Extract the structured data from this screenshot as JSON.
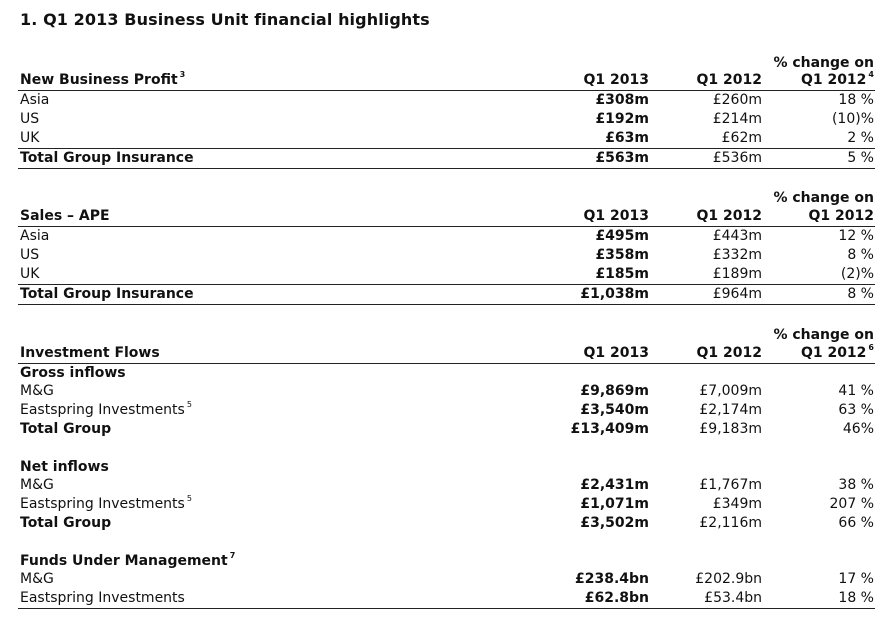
{
  "title": "1. Q1 2013 Business Unit financial highlights",
  "nbp": {
    "header": {
      "label": "New Business Profit",
      "sup": "3",
      "q13": "Q1 2013",
      "q12": "Q1 2012",
      "chg_line1": "% change on",
      "chg_line2": "Q1 2012",
      "chg_sup": "4"
    },
    "rows": [
      {
        "label": "Asia",
        "q13": "£308m",
        "q12": "£260m",
        "chg": "18 %"
      },
      {
        "label": "US",
        "q13": "£192m",
        "q12": "£214m",
        "chg": "(10)%"
      },
      {
        "label": "UK",
        "q13": "£63m",
        "q12": "£62m",
        "chg": "2 %"
      }
    ],
    "total": {
      "label": "Total Group Insurance",
      "q13": "£563m",
      "q12": "£536m",
      "chg": "5 %"
    }
  },
  "ape": {
    "header": {
      "label": "Sales – APE",
      "q13": "Q1 2013",
      "q12": "Q1 2012",
      "chg_line1": "% change on",
      "chg_line2": "Q1 2012"
    },
    "rows": [
      {
        "label": "Asia",
        "q13": "£495m",
        "q12": "£443m",
        "chg": "12 %"
      },
      {
        "label": "US",
        "q13": "£358m",
        "q12": "£332m",
        "chg": "8 %"
      },
      {
        "label": "UK",
        "q13": "£185m",
        "q12": "£189m",
        "chg": "(2)%"
      }
    ],
    "total": {
      "label": "Total Group Insurance",
      "q13": "£1,038m",
      "q12": "£964m",
      "chg": "8 %"
    }
  },
  "flows": {
    "header": {
      "label": "Investment Flows",
      "q13": "Q1 2013",
      "q12": "Q1 2012",
      "chg_line1": "% change on",
      "chg_line2": "Q1 2012",
      "chg_sup": "6"
    },
    "gross": {
      "label": "Gross inflows",
      "rows": [
        {
          "label": "M&G",
          "q13": "£9,869m",
          "q12": "£7,009m",
          "chg": "41 %"
        },
        {
          "label": "Eastspring Investments",
          "sup": "5",
          "q13": "£3,540m",
          "q12": "£2,174m",
          "chg": "63 %"
        }
      ],
      "total": {
        "label": "Total Group",
        "q13": "£13,409m",
        "q12": "£9,183m",
        "chg": "46%"
      }
    },
    "net": {
      "label": "Net inflows",
      "rows": [
        {
          "label": "M&G",
          "q13": "£2,431m",
          "q12": "£1,767m",
          "chg": "38 %"
        },
        {
          "label": "Eastspring Investments",
          "sup": "5",
          "q13": "£1,071m",
          "q12": "£349m",
          "chg": "207 %"
        }
      ],
      "total": {
        "label": "Total Group",
        "q13": "£3,502m",
        "q12": "£2,116m",
        "chg": "66 %"
      }
    },
    "fum": {
      "label": "Funds Under Management",
      "sup": "7",
      "rows": [
        {
          "label": "M&G",
          "q13": "£238.4bn",
          "q12": "£202.9bn",
          "chg": "17 %"
        },
        {
          "label": "Eastspring Investments",
          "q13": "£62.8bn",
          "q12": "£53.4bn",
          "chg": "18 %"
        }
      ]
    }
  }
}
